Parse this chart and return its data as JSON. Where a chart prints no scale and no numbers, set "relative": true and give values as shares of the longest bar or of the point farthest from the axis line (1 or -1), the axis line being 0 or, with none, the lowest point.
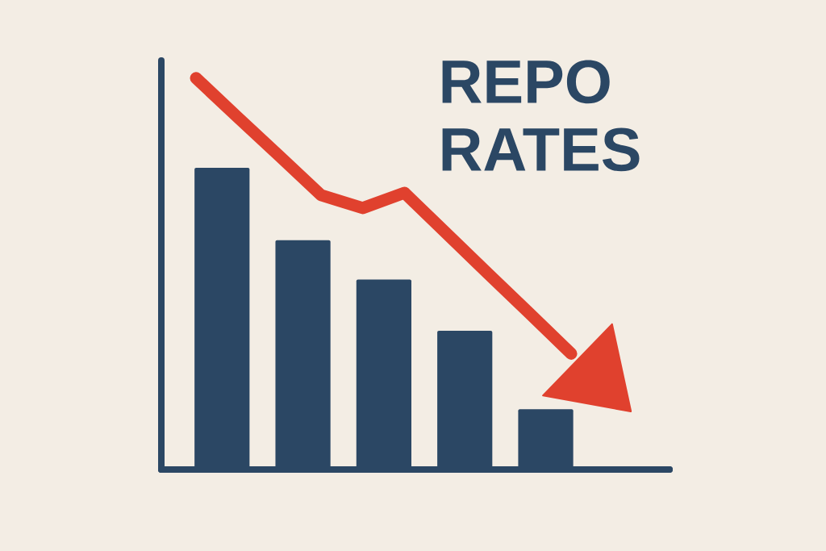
{
  "chart_data": [
    {
      "type": "bar",
      "title": "REPO RATES",
      "categories": [
        null,
        null,
        null,
        null,
        null
      ],
      "values": [
        1,
        0.76,
        0.63,
        0.46,
        0.2
      ],
      "color": "#2b4764",
      "relative": true
    },
    {
      "type": "line",
      "categories": [
        null,
        null,
        null,
        null,
        null,
        null,
        null,
        null,
        null,
        null
      ],
      "values": [
        1,
        0.9,
        0.801,
        0.701,
        0.668,
        0.707,
        0.604,
        0.501,
        0.399,
        0.296
      ],
      "color": "#e0412e",
      "relative": true
    }
  ]
}
